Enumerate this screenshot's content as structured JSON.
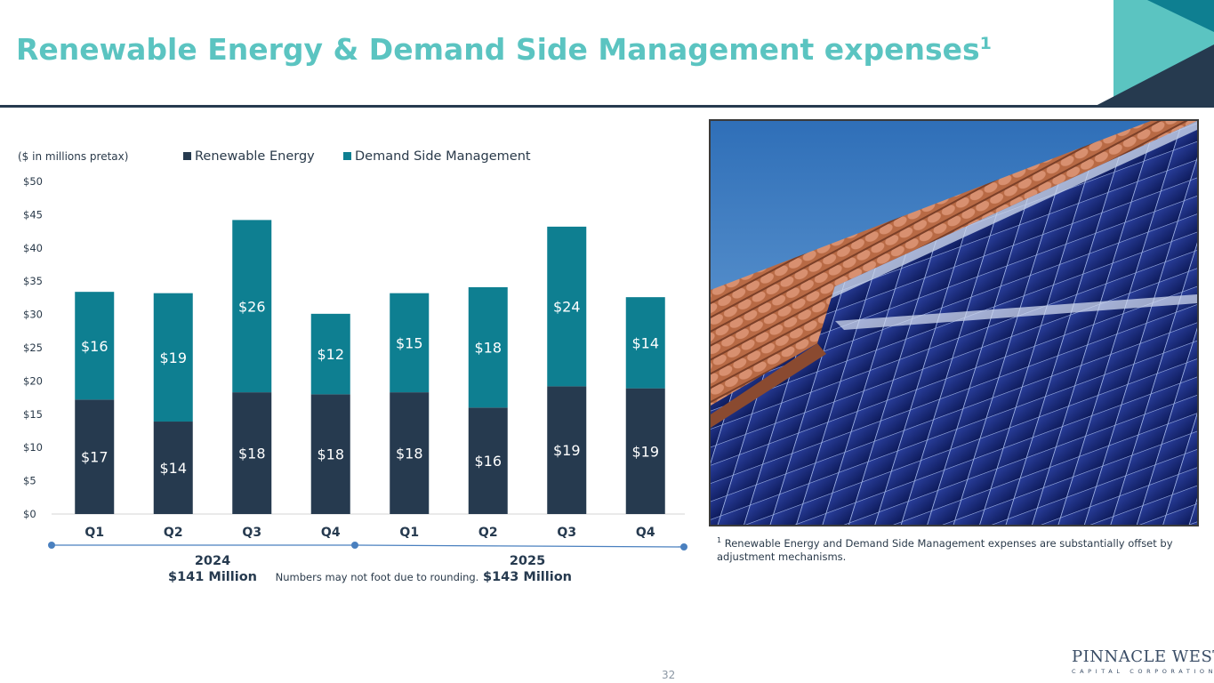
{
  "slide": {
    "title": "Renewable Energy & Demand Side Management expenses",
    "title_superscript": "1",
    "page_number": "32",
    "footnote_marker": "1",
    "footnote": "Renewable Energy and Demand Side Management expenses are substantially offset by adjustment mechanisms.",
    "rounding_note": "Numbers may not foot due to rounding.",
    "logo_main": "PINNACLE WEST",
    "logo_sub": "CAPITAL CORPORATION"
  },
  "colors": {
    "title": "#5bc4c1",
    "renewable": "#263a4f",
    "dsm": "#0e7f91",
    "accent_teal": "#5bc4c1",
    "timeline": "#4a80bf"
  },
  "chart_data": {
    "type": "bar",
    "stacked": true,
    "unit_note": "($ in millions pretax)",
    "categories": [
      "Q1",
      "Q2",
      "Q3",
      "Q4",
      "Q1",
      "Q2",
      "Q3",
      "Q4"
    ],
    "series": [
      {
        "name": "Renewable Energy",
        "values": [
          17.2,
          13.9,
          18.3,
          18.0,
          18.3,
          16.0,
          19.2,
          18.9
        ],
        "labels": [
          "$17",
          "$14",
          "$18",
          "$18",
          "$18",
          "$16",
          "$19",
          "$19"
        ]
      },
      {
        "name": "Demand Side Management",
        "values": [
          16.2,
          19.3,
          25.9,
          12.1,
          14.9,
          18.1,
          24.0,
          13.7
        ],
        "labels": [
          "$16",
          "$19",
          "$26",
          "$12",
          "$15",
          "$18",
          "$24",
          "$14"
        ]
      }
    ],
    "ylim": [
      0,
      50
    ],
    "yticks": [
      0,
      5,
      10,
      15,
      20,
      25,
      30,
      35,
      40,
      45,
      50
    ],
    "ytick_labels": [
      "$0",
      "$5",
      "$10",
      "$15",
      "$20",
      "$25",
      "$30",
      "$35",
      "$40",
      "$45",
      "$50"
    ],
    "legend_position": "top",
    "grid": false,
    "groups": [
      {
        "year": "2024",
        "total": "$141 Million",
        "start": 0,
        "end": 3
      },
      {
        "year": "2025",
        "total": "$143 Million",
        "start": 4,
        "end": 7
      }
    ]
  }
}
